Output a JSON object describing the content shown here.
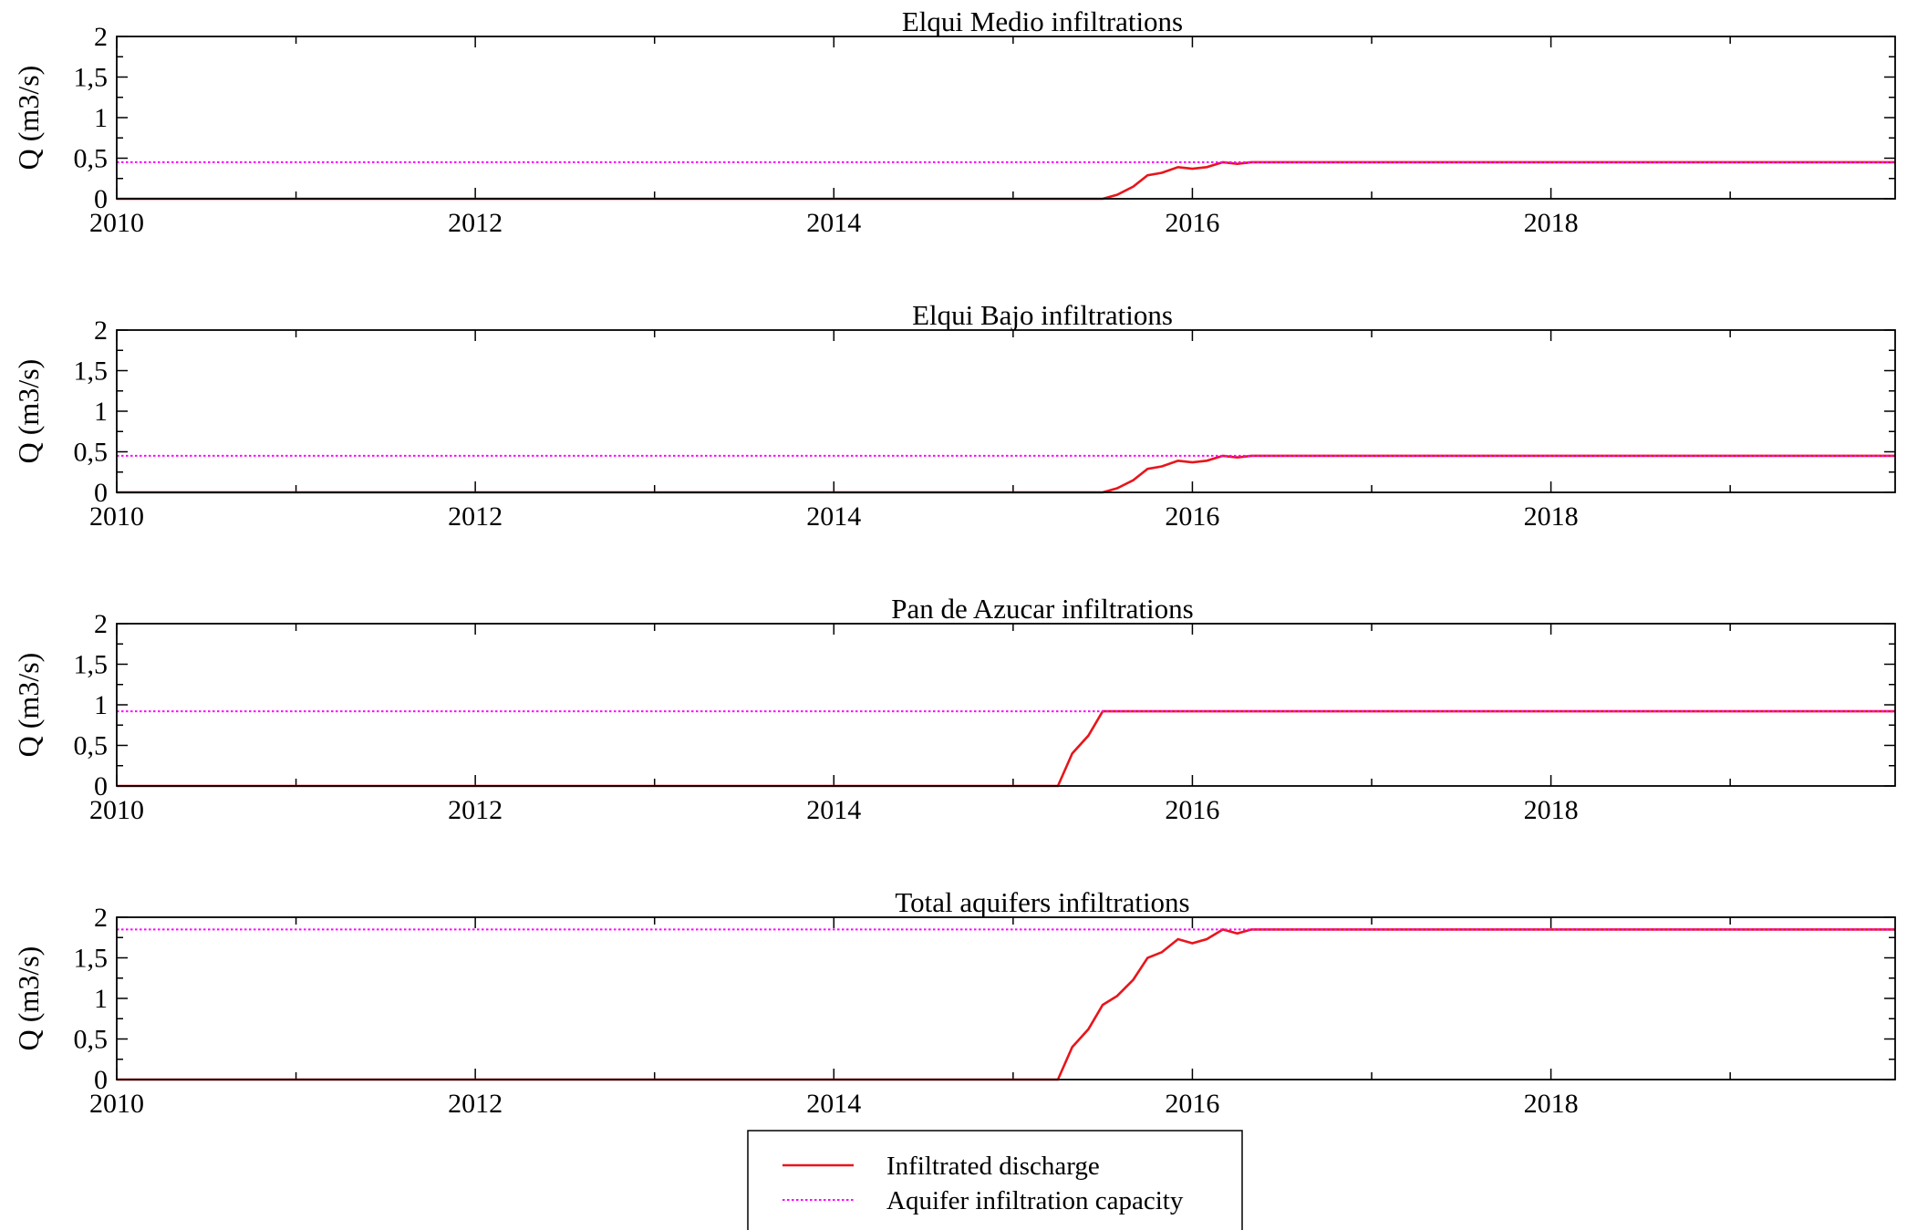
{
  "colors": {
    "discharge": "#e8151b",
    "capacity": "#ff00ff",
    "axis": "#000000",
    "background": "#ffffff"
  },
  "legend": {
    "items": [
      {
        "label": "Infiltrated discharge",
        "style": "solid",
        "color": "#e8151b"
      },
      {
        "label": "Aquifer infiltration capacity",
        "style": "dotted",
        "color": "#ff00ff"
      }
    ],
    "placement": "bottom-center"
  },
  "chart_data": [
    {
      "type": "line",
      "title": "Elqui Medio infiltrations",
      "xlabel": "",
      "ylabel": "Q (m3/s)",
      "xlim": [
        2010.0,
        2019.92
      ],
      "ylim": [
        0,
        2
      ],
      "x_ticks": [
        "2010",
        "2012",
        "2014",
        "2016",
        "2018"
      ],
      "y_ticks": [
        "0",
        "0,5",
        "1",
        "1,5",
        "2"
      ],
      "grid": false,
      "series": [
        {
          "name": "Infiltrated discharge",
          "x": [
            2010.0,
            2015.5,
            2015.58,
            2015.67,
            2015.75,
            2015.83,
            2015.92,
            2016.0,
            2016.08,
            2016.17,
            2016.25,
            2016.33,
            2019.92
          ],
          "y": [
            0,
            0,
            0.05,
            0.15,
            0.29,
            0.32,
            0.39,
            0.37,
            0.39,
            0.45,
            0.43,
            0.45,
            0.45
          ]
        },
        {
          "name": "Aquifer infiltration capacity",
          "x": [
            2010.0,
            2019.92
          ],
          "y": [
            0.45,
            0.45
          ]
        }
      ]
    },
    {
      "type": "line",
      "title": "Elqui Bajo infiltrations",
      "xlabel": "",
      "ylabel": "Q (m3/s)",
      "xlim": [
        2010.0,
        2019.92
      ],
      "ylim": [
        0,
        2
      ],
      "x_ticks": [
        "2010",
        "2012",
        "2014",
        "2016",
        "2018"
      ],
      "y_ticks": [
        "0",
        "0,5",
        "1",
        "1,5",
        "2"
      ],
      "grid": false,
      "series": [
        {
          "name": "Infiltrated discharge",
          "x": [
            2010.0,
            2015.5,
            2015.58,
            2015.67,
            2015.75,
            2015.83,
            2015.92,
            2016.0,
            2016.08,
            2016.17,
            2016.25,
            2016.33,
            2019.92
          ],
          "y": [
            0,
            0,
            0.05,
            0.15,
            0.29,
            0.32,
            0.39,
            0.37,
            0.39,
            0.45,
            0.43,
            0.45,
            0.45
          ]
        },
        {
          "name": "Aquifer infiltration capacity",
          "x": [
            2010.0,
            2019.92
          ],
          "y": [
            0.45,
            0.45
          ]
        }
      ]
    },
    {
      "type": "line",
      "title": "Pan de Azucar infiltrations",
      "xlabel": "",
      "ylabel": "Q (m3/s)",
      "xlim": [
        2010.0,
        2019.92
      ],
      "ylim": [
        0,
        2
      ],
      "x_ticks": [
        "2010",
        "2012",
        "2014",
        "2016",
        "2018"
      ],
      "y_ticks": [
        "0",
        "0,5",
        "1",
        "1,5",
        "2"
      ],
      "grid": false,
      "series": [
        {
          "name": "Infiltrated discharge",
          "x": [
            2010.0,
            2015.25,
            2015.33,
            2015.42,
            2015.5,
            2019.92
          ],
          "y": [
            0,
            0,
            0.4,
            0.62,
            0.92,
            0.92
          ]
        },
        {
          "name": "Aquifer infiltration capacity",
          "x": [
            2010.0,
            2019.92
          ],
          "y": [
            0.92,
            0.92
          ]
        }
      ]
    },
    {
      "type": "line",
      "title": "Total aquifers infiltrations",
      "xlabel": "",
      "ylabel": "Q (m3/s)",
      "xlim": [
        2010.0,
        2019.92
      ],
      "ylim": [
        0,
        2
      ],
      "x_ticks": [
        "2010",
        "2012",
        "2014",
        "2016",
        "2018"
      ],
      "y_ticks": [
        "0",
        "0,5",
        "1",
        "1,5",
        "2"
      ],
      "grid": false,
      "series": [
        {
          "name": "Infiltrated discharge",
          "x": [
            2010.0,
            2015.25,
            2015.33,
            2015.42,
            2015.5,
            2015.58,
            2015.67,
            2015.75,
            2015.83,
            2015.92,
            2016.0,
            2016.08,
            2016.17,
            2016.25,
            2016.33,
            2019.92
          ],
          "y": [
            0,
            0,
            0.4,
            0.62,
            0.92,
            1.03,
            1.23,
            1.5,
            1.57,
            1.73,
            1.68,
            1.73,
            1.85,
            1.8,
            1.85,
            1.85
          ]
        },
        {
          "name": "Aquifer infiltration capacity",
          "x": [
            2010.0,
            2019.92
          ],
          "y": [
            1.85,
            1.85
          ]
        }
      ]
    }
  ]
}
